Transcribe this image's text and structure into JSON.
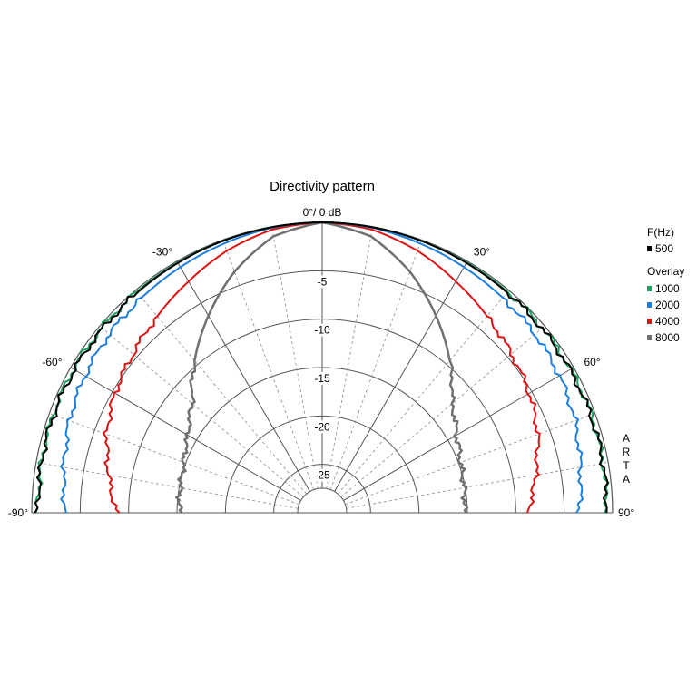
{
  "chart_data": {
    "type": "polar",
    "title": "Directivity pattern",
    "top_label": "0°/ 0 dB",
    "watermark": "ARTA",
    "angle_range_deg": [
      -90,
      90
    ],
    "db_range": [
      -30,
      0
    ],
    "ring_labels": [
      "-5",
      "-10",
      "-15",
      "-20",
      "-25"
    ],
    "angle_labels": [
      {
        "deg": -90,
        "text": "-90°"
      },
      {
        "deg": -60,
        "text": "-60°"
      },
      {
        "deg": -30,
        "text": "-30°"
      },
      {
        "deg": 30,
        "text": "30°"
      },
      {
        "deg": 60,
        "text": "60°"
      },
      {
        "deg": 90,
        "text": "90°"
      }
    ],
    "legend": {
      "header": "F(Hz)",
      "overlay_label": "Overlay"
    },
    "angles_deg": [
      0,
      10,
      20,
      30,
      40,
      50,
      60,
      70,
      75,
      80,
      85,
      90
    ],
    "series": [
      {
        "name": "500",
        "color": "#000000",
        "group": "primary",
        "width": 2,
        "db": [
          0,
          -0.05,
          -0.1,
          -0.2,
          -0.3,
          -0.4,
          -0.45,
          -0.5,
          -0.5,
          -0.55,
          -0.6,
          -0.6
        ]
      },
      {
        "name": "1000",
        "color": "#1aa160",
        "group": "overlay",
        "width": 2,
        "db": [
          0,
          -0.05,
          -0.1,
          -0.15,
          -0.2,
          -0.3,
          -0.35,
          -0.4,
          -0.5,
          -0.55,
          -0.6,
          -0.6
        ]
      },
      {
        "name": "2000",
        "color": "#1c7fe0",
        "group": "overlay",
        "width": 2,
        "db": [
          0,
          -0.1,
          -0.4,
          -0.7,
          -1.0,
          -1.3,
          -1.7,
          -2.2,
          -2.6,
          -2.9,
          -3.2,
          -3.5
        ]
      },
      {
        "name": "4000",
        "color": "#e01010",
        "group": "overlay",
        "width": 2,
        "db": [
          0,
          -0.3,
          -1.2,
          -2.4,
          -3.5,
          -4.5,
          -5.3,
          -6.3,
          -7.0,
          -7.6,
          -8.2,
          -8.8
        ]
      },
      {
        "name": "8000",
        "color": "#707070",
        "group": "overlay",
        "width": 2.5,
        "db": [
          0,
          -1.0,
          -3.5,
          -6.5,
          -9.5,
          -12.5,
          -14.0,
          -14.8,
          -15.0,
          -15.1,
          -15.2,
          -15.3
        ]
      }
    ]
  }
}
